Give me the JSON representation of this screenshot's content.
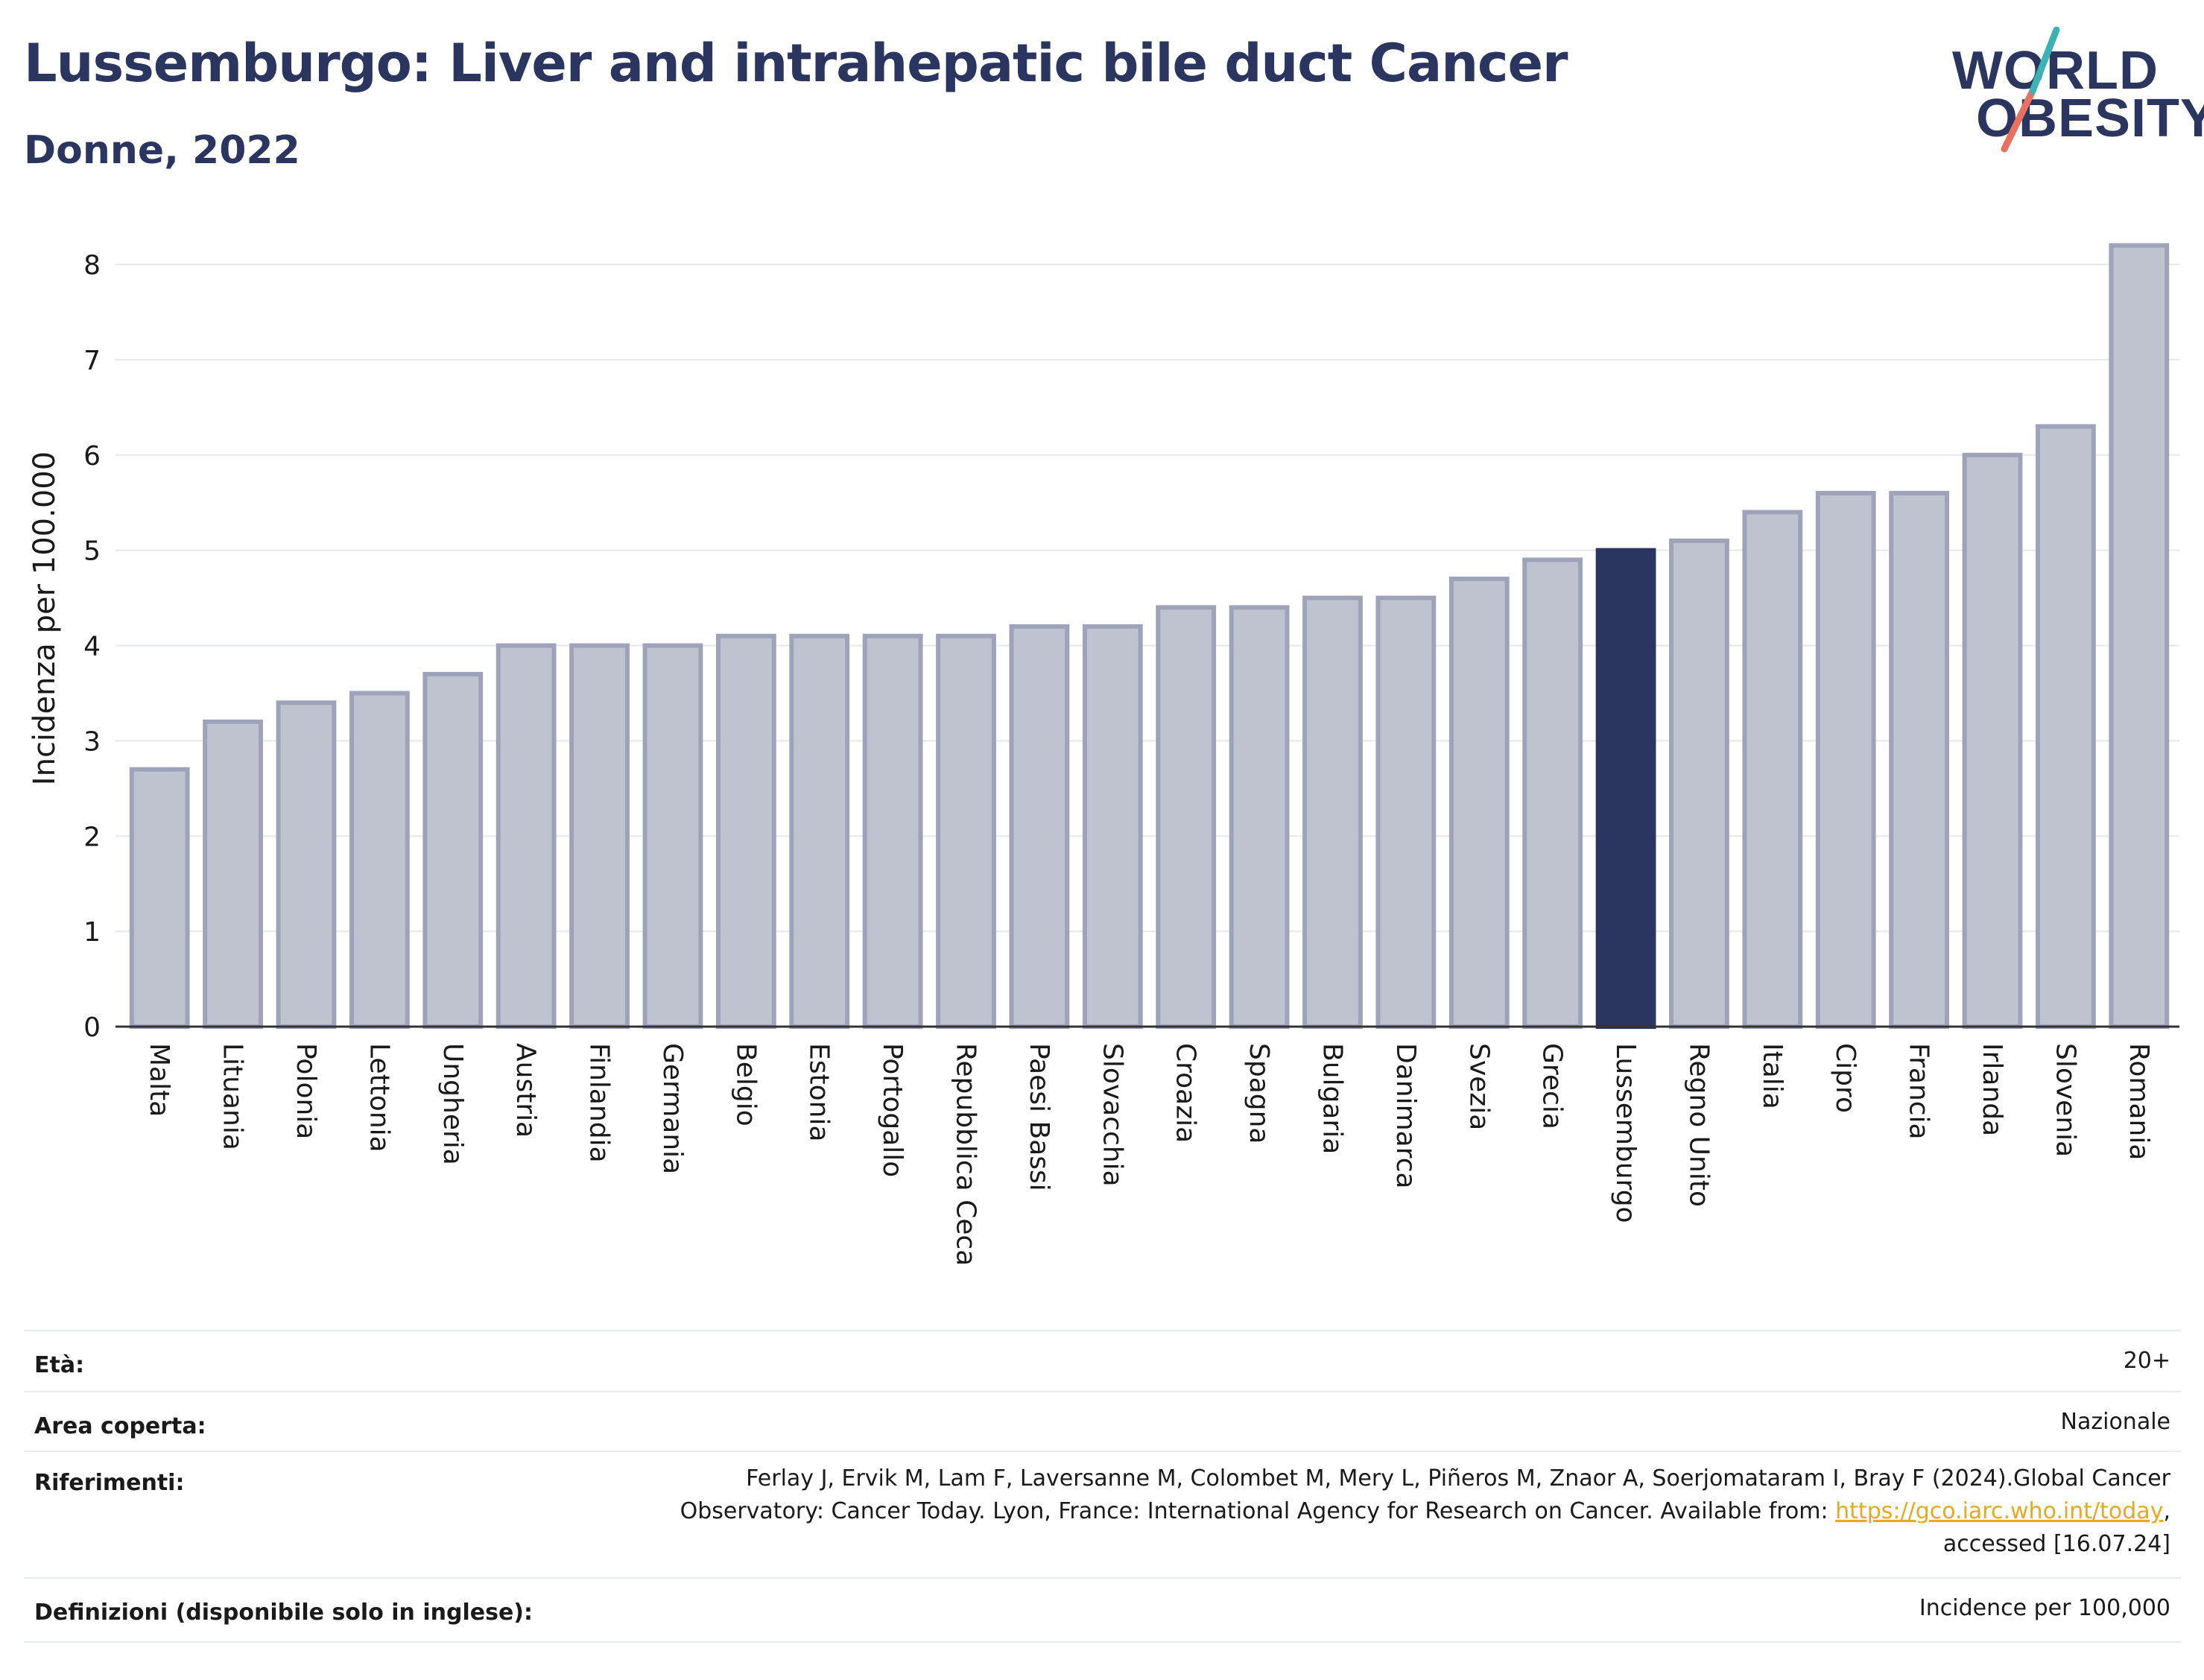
{
  "header": {
    "title": "Lussemburgo: Liver and intrahepatic bile duct Cancer",
    "subtitle": "Donne, 2022"
  },
  "logo": {
    "line1": "WORLD",
    "line2": "OBESITY"
  },
  "chart_data": {
    "type": "bar",
    "title": "Lussemburgo: Liver and intrahepatic bile duct Cancer",
    "subtitle": "Donne, 2022",
    "ylabel": "Incidenza per 100.000",
    "xlabel": "",
    "ylim": [
      0,
      8.4
    ],
    "yticks": [
      0,
      1,
      2,
      3,
      4,
      5,
      6,
      7,
      8
    ],
    "grid": true,
    "categories": [
      "Malta",
      "Lituania",
      "Polonia",
      "Lettonia",
      "Ungheria",
      "Austria",
      "Finlandia",
      "Germania",
      "Belgio",
      "Estonia",
      "Portogallo",
      "Repubblica Ceca",
      "Paesi Bassi",
      "Slovacchia",
      "Croazia",
      "Spagna",
      "Bulgaria",
      "Danimarca",
      "Svezia",
      "Grecia",
      "Lussemburgo",
      "Regno Unito",
      "Italia",
      "Cipro",
      "Francia",
      "Irlanda",
      "Slovenia",
      "Romania"
    ],
    "values": [
      2.7,
      3.2,
      3.4,
      3.5,
      3.7,
      4.0,
      4.0,
      4.0,
      4.1,
      4.1,
      4.1,
      4.1,
      4.2,
      4.2,
      4.4,
      4.4,
      4.5,
      4.5,
      4.7,
      4.9,
      5.0,
      5.1,
      5.4,
      5.6,
      5.6,
      6.0,
      6.3,
      8.2
    ],
    "highlight": "Lussemburgo",
    "colors": {
      "bar": "#bfc2cf",
      "bar_edge": "#9ea3b9",
      "highlight": "#2a3560",
      "grid": "#e6e8ee",
      "axis": "#333333"
    }
  },
  "meta": {
    "eta_label": "Età:",
    "eta_value": "20+",
    "area_label": "Area coperta:",
    "area_value": "Nazionale",
    "ref_label": "Riferimenti:",
    "ref_line1": "Ferlay J, Ervik M, Lam F, Laversanne M, Colombet M, Mery L, Piñeros M, Znaor A, Soerjomataram I, Bray F (2024).Global Cancer",
    "ref_line2_pre": "Observatory: Cancer Today. Lyon, France: International Agency for Research on Cancer. Available from: ",
    "ref_link": "https://gco.iarc.who.int/today",
    "ref_line2_post": ",",
    "ref_line3": "accessed [16.07.24]",
    "def_label": "Definizioni (disponibile solo in inglese):",
    "def_value": "Incidence per 100,000"
  }
}
